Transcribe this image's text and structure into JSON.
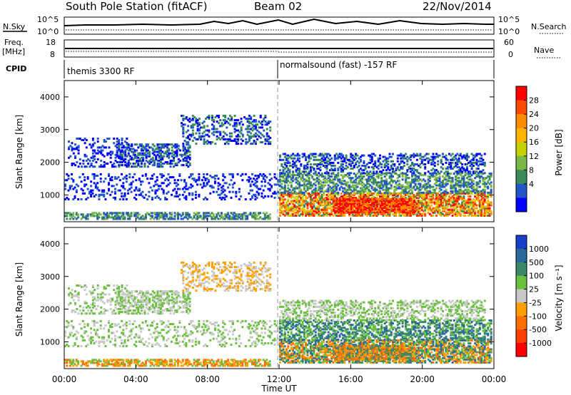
{
  "header": {
    "station": "South Pole Station (fitACF)",
    "beam": "Beam 02",
    "date": "22/Nov/2014"
  },
  "noise_panel": {
    "left_label": "N.Sky",
    "right_label": "N.Search",
    "left_ticks": [
      "10^5",
      "10^0"
    ],
    "right_ticks": [
      "10^5",
      "10^0"
    ]
  },
  "freq_panel": {
    "left_label_line1": "Freq.",
    "left_label_line2": "[MHz]",
    "left_ticks": [
      "18",
      "8"
    ],
    "right_ticks": [
      "60",
      "0"
    ],
    "right_label": "Nave"
  },
  "cpid_panel": {
    "label": "CPID",
    "segments": [
      {
        "label": "themis 3300 RF",
        "start_hour": 0
      },
      {
        "label": "normalsound (fast) -157 RF",
        "start_hour": 12
      }
    ]
  },
  "power_colorbar": {
    "title": "Power [dB]",
    "ticks": [
      "28",
      "24",
      "20",
      "16",
      "12",
      "8",
      "4"
    ],
    "colors": [
      "#ff0000",
      "#ff4a00",
      "#ff8c00",
      "#ffb400",
      "#c8d200",
      "#7ab84a",
      "#3b8a5a",
      "#2255c8",
      "#0000ff"
    ]
  },
  "velocity_colorbar": {
    "title": "Velocity [m s⁻¹]",
    "ticks": [
      "1000",
      "500",
      "100",
      "25",
      "-25",
      "-100",
      "-500",
      "-1000"
    ],
    "colors": [
      "#1a3ec8",
      "#2a6a9a",
      "#3a8a6a",
      "#6cc040",
      "#c8c8c8",
      "#ffa000",
      "#ff7000",
      "#ff4000",
      "#ff0000"
    ]
  },
  "chart_data": [
    {
      "type": "heatmap",
      "name": "power",
      "ylabel": "Slant Range [km]",
      "y_ticks": [
        "4000",
        "3000",
        "2000",
        "1000"
      ],
      "ylim": [
        180,
        4500
      ],
      "x_ticks": [
        "00:00",
        "04:00",
        "08:00",
        "12:00",
        "16:00",
        "20:00",
        "00:00"
      ],
      "xlim_hours": [
        0,
        24
      ],
      "colorbar": "Power [dB]"
    },
    {
      "type": "heatmap",
      "name": "velocity",
      "ylabel": "Slant Range [km]",
      "y_ticks": [
        "4000",
        "3000",
        "2000",
        "1000"
      ],
      "ylim": [
        180,
        4500
      ],
      "x_ticks": [
        "00:00",
        "04:00",
        "08:00",
        "12:00",
        "16:00",
        "20:00",
        "00:00"
      ],
      "xlim_hours": [
        0,
        24
      ],
      "xlabel": "Time UT",
      "colorbar": "Velocity [m s⁻¹]"
    }
  ]
}
